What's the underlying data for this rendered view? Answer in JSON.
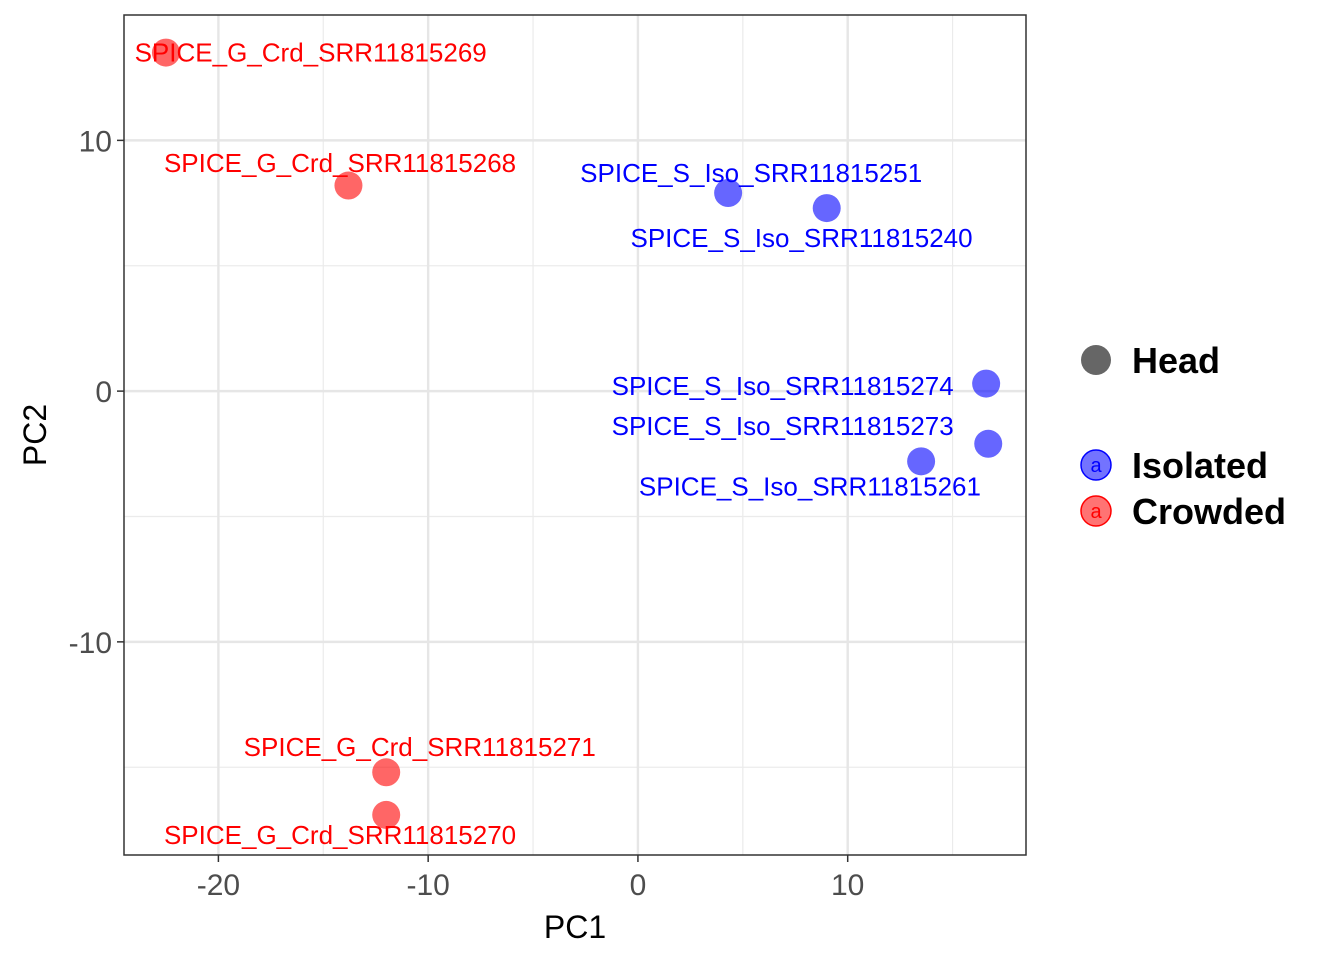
{
  "chart_data": {
    "type": "scatter",
    "title": "",
    "xlabel": "PC1",
    "ylabel": "PC2",
    "xlim": [
      -24.5,
      18.5
    ],
    "ylim": [
      -18.5,
      15
    ],
    "x_major_ticks": [
      -20,
      -10,
      0,
      10
    ],
    "y_major_ticks": [
      -10,
      0,
      10
    ],
    "x_minor_grid": [
      -15,
      -5,
      5,
      15
    ],
    "y_minor_grid": [
      -15,
      -5,
      5
    ],
    "grid": true,
    "legend_position": "right",
    "legend": {
      "shape_entries": [
        {
          "label": "Head",
          "color": "#666666"
        }
      ],
      "color_entries": [
        {
          "label": "Isolated",
          "color": "#5a5aff",
          "text_color": "#0000ff",
          "key_glyph": "a"
        },
        {
          "label": "Crowded",
          "color": "#ff5a5a",
          "text_color": "#ff0000",
          "key_glyph": "a"
        }
      ]
    },
    "series": [
      {
        "name": "Isolated",
        "color": "#0000ff",
        "points": [
          {
            "x": 4.3,
            "y": 7.9,
            "label": "SPICE_S_Iso_SRR11815251",
            "label_x": 5.4,
            "label_y": 8.7
          },
          {
            "x": 9.0,
            "y": 7.3,
            "label": "SPICE_S_Iso_SRR11815240",
            "label_x": 7.8,
            "label_y": 6.1
          },
          {
            "x": 16.6,
            "y": 0.3,
            "label": "SPICE_S_Iso_SRR11815274",
            "label_x": 6.9,
            "label_y": 0.2
          },
          {
            "x": 16.7,
            "y": -2.1,
            "label": "SPICE_S_Iso_SRR11815273",
            "label_x": 6.9,
            "label_y": -1.4
          },
          {
            "x": 13.5,
            "y": -2.8,
            "label": "SPICE_S_Iso_SRR11815261",
            "label_x": 8.2,
            "label_y": -3.8
          }
        ]
      },
      {
        "name": "Crowded",
        "color": "#ff0000",
        "points": [
          {
            "x": -22.5,
            "y": 13.5,
            "label": "SPICE_G_Crd_SRR11815269",
            "label_x": -15.6,
            "label_y": 13.5
          },
          {
            "x": -13.8,
            "y": 8.2,
            "label": "SPICE_G_Crd_SRR11815268",
            "label_x": -14.2,
            "label_y": 9.1
          },
          {
            "x": -12.0,
            "y": -15.2,
            "label": "SPICE_G_Crd_SRR11815271",
            "label_x": -10.4,
            "label_y": -14.2
          },
          {
            "x": -12.0,
            "y": -16.9,
            "label": "SPICE_G_Crd_SRR11815270",
            "label_x": -14.2,
            "label_y": -17.7
          }
        ]
      }
    ]
  }
}
